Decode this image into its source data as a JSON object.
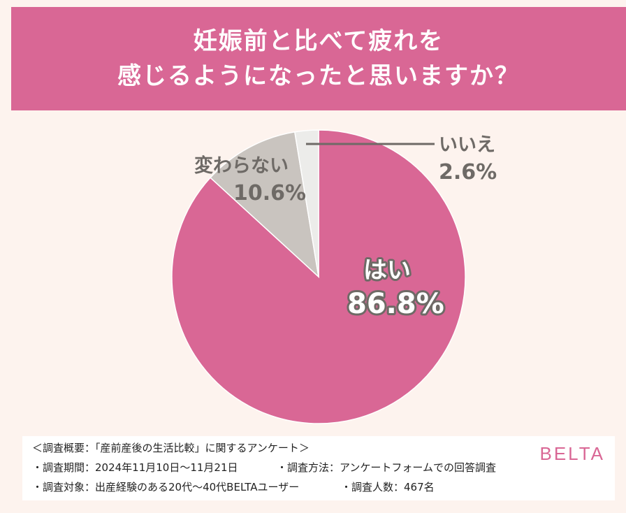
{
  "title": {
    "line1": "妊娠前と比べて疲れを",
    "line2": "感じるようになったと思いますか？"
  },
  "colors": {
    "yes": "#d96795",
    "unchanged": "#c9c4bf",
    "no": "#ececea",
    "label_gray": "#6e6a66",
    "brand": "#d96795"
  },
  "chart_data": {
    "type": "pie",
    "slices": [
      {
        "label": "はい",
        "value": 86.8,
        "value_label": "86.8%"
      },
      {
        "label": "変わらない",
        "value": 10.6,
        "value_label": "10.6%"
      },
      {
        "label": "いいえ",
        "value": 2.6,
        "value_label": "2.6%"
      }
    ],
    "start": "12 o'clock",
    "direction": "clockwise"
  },
  "footer": {
    "heading": "＜調査概要：「産前産後の生活比較」に関するアンケート＞",
    "period": "・調査期間：2024年11月10日〜11月21日",
    "method": "・調査方法：アンケートフォームでの回答調査",
    "target": "・調査対象：出産経験のある20代〜40代BELTAユーザー",
    "count": "・調査人数：467名"
  },
  "brand": "BELTA"
}
